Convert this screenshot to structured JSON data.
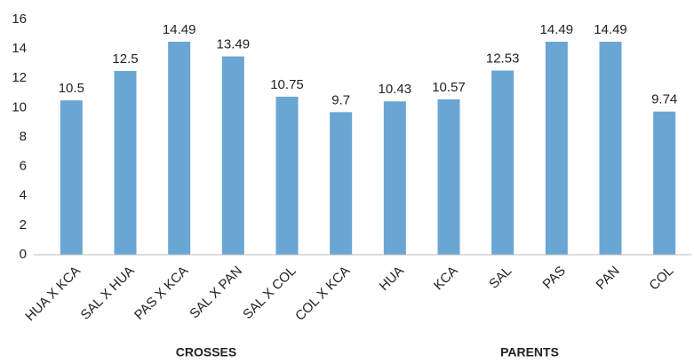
{
  "chart_data": {
    "type": "bar",
    "categories": [
      "HUA X KCA",
      "SAL X HUA",
      "PAS X KCA",
      "SAL X PAN",
      "SAL X COL",
      "COL X KCA",
      "HUA",
      "KCA",
      "SAL",
      "PAS",
      "PAN",
      "COL"
    ],
    "values": [
      10.5,
      12.5,
      14.49,
      13.49,
      10.75,
      9.7,
      10.43,
      10.57,
      12.53,
      14.49,
      14.49,
      9.74
    ],
    "color": "#6aa6d3",
    "ylim": [
      0,
      16
    ],
    "yticks": [
      0,
      2,
      4,
      6,
      8,
      10,
      12,
      14,
      16
    ],
    "grid": false,
    "group_labels": [
      "CROSSES",
      "PARENTS"
    ]
  }
}
